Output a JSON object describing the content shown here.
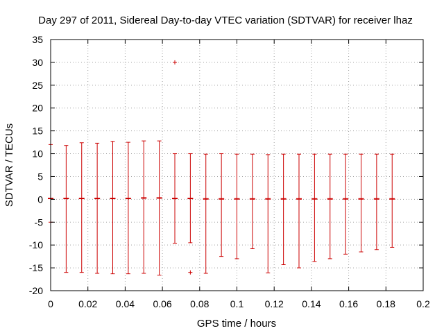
{
  "chart_data": {
    "type": "scatter",
    "title": "Day 297 of 2011, Sidereal Day-to-day VTEC variation (SDTVAR) for receiver lhaz",
    "xlabel": "GPS time / hours",
    "ylabel": "SDTVAR / TECUs",
    "xlim": [
      0,
      0.2
    ],
    "ylim": [
      -20,
      35
    ],
    "x_ticks": [
      "0",
      "0.02",
      "0.04",
      "0.06",
      "0.08",
      "0.1",
      "0.12",
      "0.14",
      "0.16",
      "0.18",
      "0.2"
    ],
    "y_ticks": [
      "-20",
      "-15",
      "-10",
      "-5",
      "0",
      "5",
      "10",
      "15",
      "20",
      "25",
      "30",
      "35"
    ],
    "grid": true,
    "color": "#cc0000",
    "series": [
      {
        "x": [
          0,
          0.00833,
          0.01667,
          0.025,
          0.03333,
          0.04167,
          0.05,
          0.05833,
          0.06667,
          0.075,
          0.08333,
          0.09167,
          0.1,
          0.10833,
          0.11667,
          0.125,
          0.13333,
          0.14167,
          0.15,
          0.15833,
          0.16667,
          0.175,
          0.18333
        ],
        "y": [
          0.2,
          0.2,
          0.2,
          0.2,
          0.2,
          0.2,
          0.3,
          0.3,
          0.2,
          0.2,
          0.1,
          0.1,
          0.1,
          0.1,
          0.1,
          0.1,
          0.1,
          0.1,
          0.1,
          0.1,
          0.1,
          0.1,
          0.1
        ],
        "ylow": [
          -5,
          -16,
          -16,
          -16.2,
          -16.3,
          -16.3,
          -16.2,
          -16.6,
          -9.6,
          -9.5,
          -16.2,
          -12.5,
          -13,
          -10.8,
          -16.1,
          -14.3,
          -15,
          -13.6,
          -13,
          -12,
          -11.5,
          -11,
          -10.5
        ],
        "yhigh": [
          12,
          11.8,
          12.4,
          12.3,
          12.7,
          12.5,
          12.8,
          12.8,
          10,
          10,
          9.9,
          10,
          9.9,
          9.9,
          9.8,
          9.9,
          9.9,
          9.9,
          9.9,
          9.9,
          9.9,
          9.9,
          9.9
        ]
      }
    ],
    "outliers": [
      {
        "x": 0.06667,
        "y": 30
      },
      {
        "x": 0.075,
        "y": -16
      }
    ]
  }
}
